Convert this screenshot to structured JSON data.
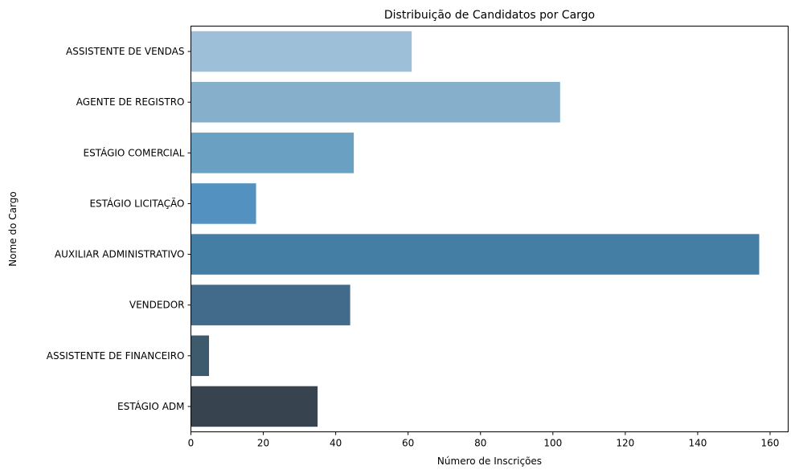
{
  "chart_data": {
    "type": "bar",
    "orientation": "horizontal",
    "title": "Distribuição de Candidatos por Cargo",
    "xlabel": "Número de Inscrições",
    "ylabel": "Nome do Cargo",
    "categories": [
      "ASSISTENTE DE VENDAS",
      "AGENTE DE REGISTRO",
      "ESTÁGIO COMERCIAL",
      "ESTÁGIO LICITAÇÃO",
      "AUXILIAR ADMINISTRATIVO",
      "VENDEDOR",
      "ASSISTENTE DE FINANCEIRO",
      "ESTÁGIO ADM"
    ],
    "values": [
      61,
      102,
      45,
      18,
      157,
      44,
      5,
      35
    ],
    "colors": [
      "#9ebfd8",
      "#86afcb",
      "#6aa0c1",
      "#5291c0",
      "#447ea5",
      "#426a8a",
      "#3e5a6d",
      "#37444f"
    ],
    "xlim": [
      0,
      165
    ],
    "xticks": [
      0,
      20,
      40,
      60,
      80,
      100,
      120,
      140,
      160
    ],
    "grid": false,
    "legend": "none"
  }
}
